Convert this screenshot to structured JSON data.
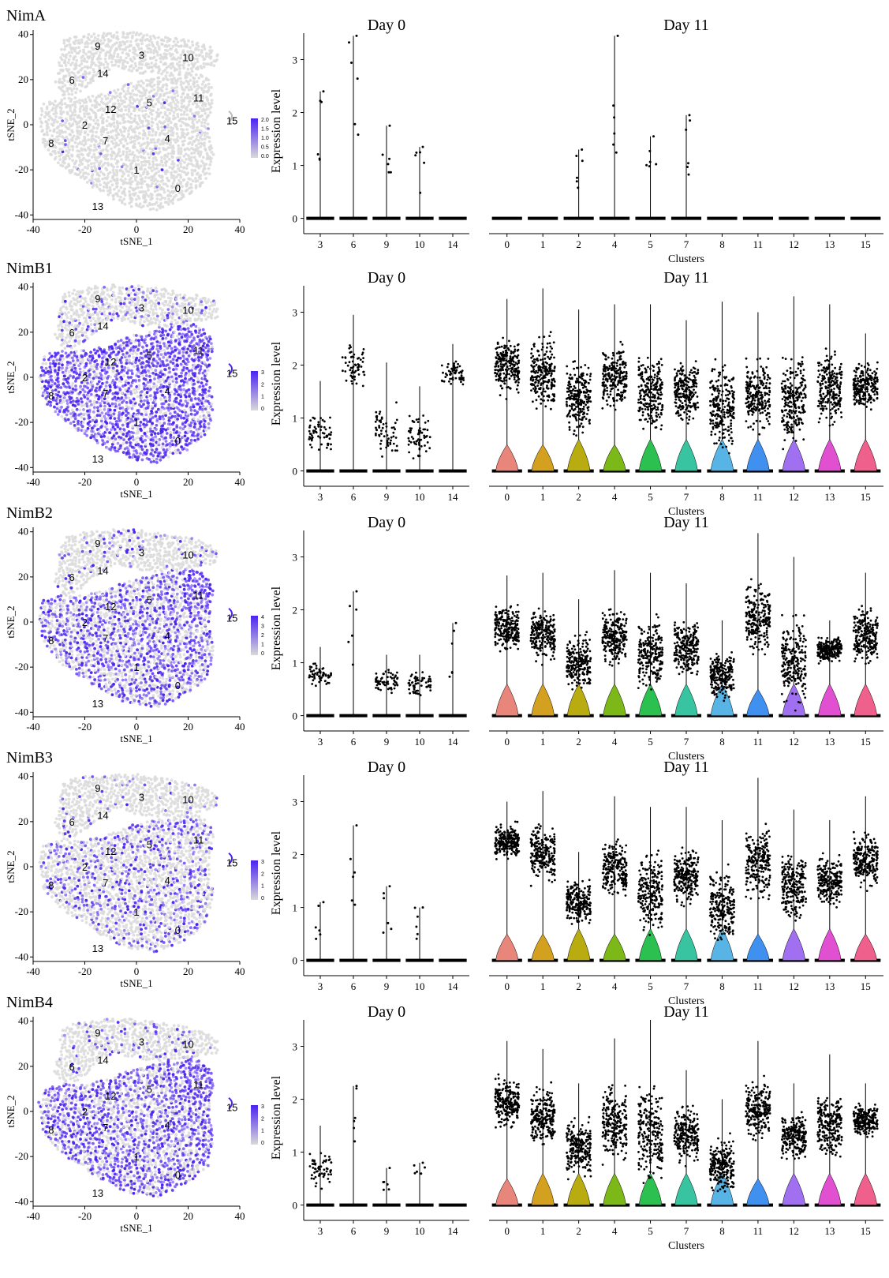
{
  "figure": {
    "axis_labels": {
      "tsne_x": "tSNE_1",
      "tsne_y": "tSNE_2",
      "violin_x": "Clusters",
      "violin_y": "Expression level"
    }
  },
  "colors": {
    "cluster_palette": {
      "0": "#e8867c",
      "1": "#d4a020",
      "2": "#b8ac10",
      "4": "#7cb818",
      "5": "#2cc050",
      "7": "#38c4a0",
      "8": "#58b4e4",
      "11": "#4090f0",
      "12": "#a070f0",
      "13": "#e050d0",
      "15": "#f0608c"
    },
    "tsne_low": "#d9d9d9",
    "tsne_high": "#4b22f0"
  },
  "chart_data": [
    {
      "type": "scatter",
      "panel": "NimA",
      "title": "NimA",
      "xlabel": "tSNE_1",
      "ylabel": "tSNE_2",
      "xlim": [
        -40,
        40
      ],
      "ylim": [
        -42,
        42
      ],
      "xticks": [
        -40,
        -20,
        0,
        20,
        40
      ],
      "yticks": [
        -40,
        -20,
        0,
        20,
        40
      ],
      "colorbar_ticks": [
        "2.0",
        "1.5",
        "1.0",
        "0.5",
        "0.0"
      ],
      "cluster_labels": [
        "9",
        "3",
        "10",
        "6",
        "14",
        "12",
        "5",
        "11",
        "15",
        "2",
        "8",
        "7",
        "4",
        "1",
        "0",
        "13"
      ],
      "expression_fraction": 0.01
    },
    {
      "type": "violin",
      "panel": "NimA",
      "title": "Day 0",
      "xlabel": "",
      "ylabel": "Expression level",
      "ylim": [
        -0.2,
        3.5
      ],
      "yticks": [
        0,
        1,
        2,
        3
      ],
      "categories": [
        "3",
        "6",
        "9",
        "10",
        "14"
      ],
      "series": [
        {
          "values_max": [
            2.4,
            3.45,
            1.75,
            1.35,
            0
          ],
          "values_median": [
            0,
            0,
            0,
            0,
            0
          ]
        }
      ]
    },
    {
      "type": "violin",
      "panel": "NimA",
      "title": "Day 11",
      "xlabel": "Clusters",
      "ylabel": "",
      "ylim": [
        -0.2,
        3.5
      ],
      "categories": [
        "0",
        "1",
        "2",
        "4",
        "5",
        "7",
        "8",
        "11",
        "12",
        "13",
        "15"
      ],
      "series": [
        {
          "values_max": [
            0,
            0,
            1.3,
            3.45,
            1.55,
            1.95,
            0,
            0,
            0,
            0,
            0
          ],
          "values_median": [
            0,
            0,
            0,
            0,
            0,
            0,
            0,
            0,
            0,
            0,
            0
          ]
        }
      ]
    },
    {
      "type": "scatter",
      "panel": "NimB1",
      "title": "NimB1",
      "xlabel": "tSNE_1",
      "ylabel": "tSNE_2",
      "xlim": [
        -40,
        40
      ],
      "ylim": [
        -42,
        42
      ],
      "xticks": [
        -40,
        -20,
        0,
        20,
        40
      ],
      "yticks": [
        -40,
        -20,
        0,
        20,
        40
      ],
      "colorbar_ticks": [
        "3",
        "2",
        "1",
        "0"
      ],
      "cluster_labels": [
        "9",
        "3",
        "10",
        "6",
        "14",
        "12",
        "5",
        "11",
        "15",
        "2",
        "8",
        "7",
        "4",
        "1",
        "0",
        "13"
      ],
      "expression_fraction": 0.78
    },
    {
      "type": "violin",
      "panel": "NimB1",
      "title": "Day 0",
      "xlabel": "",
      "ylabel": "Expression level",
      "ylim": [
        -0.2,
        3.5
      ],
      "yticks": [
        0,
        1,
        2,
        3
      ],
      "categories": [
        "3",
        "6",
        "9",
        "10",
        "14"
      ],
      "series": [
        {
          "values_max": [
            1.7,
            2.95,
            2.05,
            1.6,
            2.4
          ],
          "values_median": [
            0.75,
            2.0,
            0.7,
            0.65,
            1.85
          ]
        }
      ]
    },
    {
      "type": "violin",
      "panel": "NimB1",
      "title": "Day 11",
      "xlabel": "Clusters",
      "ylabel": "",
      "ylim": [
        -0.2,
        3.5
      ],
      "categories": [
        "0",
        "1",
        "2",
        "4",
        "5",
        "7",
        "8",
        "11",
        "12",
        "13",
        "15"
      ],
      "series": [
        {
          "values_max": [
            3.25,
            3.45,
            3.05,
            3.15,
            3.15,
            2.85,
            3.2,
            3.0,
            3.3,
            3.15,
            2.6
          ],
          "values_median": [
            2.0,
            1.85,
            1.4,
            1.75,
            1.5,
            1.5,
            1.2,
            1.45,
            1.35,
            1.55,
            1.6
          ]
        }
      ]
    },
    {
      "type": "scatter",
      "panel": "NimB2",
      "title": "NimB2",
      "xlabel": "tSNE_1",
      "ylabel": "tSNE_2",
      "xlim": [
        -40,
        40
      ],
      "ylim": [
        -42,
        42
      ],
      "xticks": [
        -40,
        -20,
        0,
        20,
        40
      ],
      "yticks": [
        -40,
        -20,
        0,
        20,
        40
      ],
      "colorbar_ticks": [
        "4",
        "3",
        "2",
        "1",
        "0"
      ],
      "cluster_labels": [
        "9",
        "3",
        "10",
        "6",
        "14",
        "12",
        "5",
        "11",
        "15",
        "2",
        "8",
        "7",
        "4",
        "1",
        "0",
        "13"
      ],
      "expression_fraction": 0.55
    },
    {
      "type": "violin",
      "panel": "NimB2",
      "title": "Day 0",
      "xlabel": "",
      "ylabel": "Expression level",
      "ylim": [
        -0.2,
        3.5
      ],
      "yticks": [
        0,
        1,
        2,
        3
      ],
      "categories": [
        "3",
        "6",
        "9",
        "10",
        "14"
      ],
      "series": [
        {
          "values_max": [
            1.3,
            2.35,
            1.15,
            1.15,
            1.75
          ],
          "values_median": [
            0.75,
            0,
            0.65,
            0.6,
            0
          ]
        }
      ]
    },
    {
      "type": "violin",
      "panel": "NimB2",
      "title": "Day 11",
      "xlabel": "Clusters",
      "ylabel": "",
      "ylim": [
        -0.2,
        3.5
      ],
      "categories": [
        "0",
        "1",
        "2",
        "4",
        "5",
        "7",
        "8",
        "11",
        "12",
        "13",
        "15"
      ],
      "series": [
        {
          "values_max": [
            2.65,
            2.7,
            2.2,
            2.75,
            2.7,
            2.5,
            1.8,
            3.45,
            3.0,
            1.8,
            2.7
          ],
          "values_median": [
            1.65,
            1.55,
            1.0,
            1.5,
            1.15,
            1.3,
            0.75,
            1.85,
            1.05,
            1.25,
            1.5
          ]
        }
      ]
    },
    {
      "type": "scatter",
      "panel": "NimB3",
      "title": "NimB3",
      "xlabel": "tSNE_1",
      "ylabel": "tSNE_2",
      "xlim": [
        -40,
        40
      ],
      "ylim": [
        -42,
        42
      ],
      "xticks": [
        -40,
        -20,
        0,
        20,
        40
      ],
      "yticks": [
        -40,
        -20,
        0,
        20,
        40
      ],
      "colorbar_ticks": [
        "3",
        "2",
        "1",
        "0"
      ],
      "cluster_labels": [
        "9",
        "3",
        "10",
        "6",
        "14",
        "12",
        "5",
        "11",
        "15",
        "2",
        "8",
        "7",
        "4",
        "1",
        "0",
        "13"
      ],
      "expression_fraction": 0.3
    },
    {
      "type": "violin",
      "panel": "NimB3",
      "title": "Day 0",
      "xlabel": "",
      "ylabel": "Expression level",
      "ylim": [
        -0.2,
        3.5
      ],
      "yticks": [
        0,
        1,
        2,
        3
      ],
      "categories": [
        "3",
        "6",
        "9",
        "10",
        "14"
      ],
      "series": [
        {
          "values_max": [
            1.1,
            2.55,
            1.4,
            1.0,
            0
          ],
          "values_median": [
            0,
            0,
            0,
            0,
            0
          ]
        }
      ]
    },
    {
      "type": "violin",
      "panel": "NimB3",
      "title": "Day 11",
      "xlabel": "Clusters",
      "ylabel": "",
      "ylim": [
        -0.2,
        3.5
      ],
      "categories": [
        "0",
        "1",
        "2",
        "4",
        "5",
        "7",
        "8",
        "11",
        "12",
        "13",
        "15"
      ],
      "series": [
        {
          "values_max": [
            3.0,
            3.2,
            2.05,
            3.1,
            2.9,
            2.9,
            2.65,
            3.45,
            2.85,
            2.65,
            3.1
          ],
          "values_median": [
            2.25,
            2.0,
            1.1,
            1.75,
            1.3,
            1.6,
            1.0,
            1.85,
            1.4,
            1.5,
            1.9
          ]
        }
      ]
    },
    {
      "type": "scatter",
      "panel": "NimB4",
      "title": "NimB4",
      "xlabel": "tSNE_1",
      "ylabel": "tSNE_2",
      "xlim": [
        -40,
        40
      ],
      "ylim": [
        -42,
        42
      ],
      "xticks": [
        -40,
        -20,
        0,
        20,
        40
      ],
      "yticks": [
        -40,
        -20,
        0,
        20,
        40
      ],
      "colorbar_ticks": [
        "3",
        "2",
        "1",
        "0"
      ],
      "cluster_labels": [
        "9",
        "3",
        "10",
        "6",
        "14",
        "12",
        "5",
        "11",
        "15",
        "2",
        "8",
        "7",
        "4",
        "1",
        "0",
        "13"
      ],
      "expression_fraction": 0.6
    },
    {
      "type": "violin",
      "panel": "NimB4",
      "title": "Day 0",
      "xlabel": "",
      "ylabel": "Expression level",
      "ylim": [
        -0.2,
        3.5
      ],
      "yticks": [
        0,
        1,
        2,
        3
      ],
      "categories": [
        "3",
        "6",
        "9",
        "10",
        "14"
      ],
      "series": [
        {
          "values_max": [
            1.5,
            2.25,
            0.7,
            0.8,
            0
          ],
          "values_median": [
            0.7,
            0,
            0,
            0,
            0
          ]
        }
      ]
    },
    {
      "type": "violin",
      "panel": "NimB4",
      "title": "Day 11",
      "xlabel": "Clusters",
      "ylabel": "",
      "ylim": [
        -0.2,
        3.5
      ],
      "categories": [
        "0",
        "1",
        "2",
        "4",
        "5",
        "7",
        "8",
        "11",
        "12",
        "13",
        "15"
      ],
      "series": [
        {
          "values_max": [
            3.1,
            2.95,
            2.3,
            3.15,
            3.5,
            2.55,
            2.0,
            3.1,
            2.3,
            2.85,
            2.3
          ],
          "values_median": [
            1.95,
            1.7,
            1.05,
            1.55,
            1.35,
            1.35,
            0.75,
            1.8,
            1.3,
            1.5,
            1.6
          ]
        }
      ]
    }
  ]
}
